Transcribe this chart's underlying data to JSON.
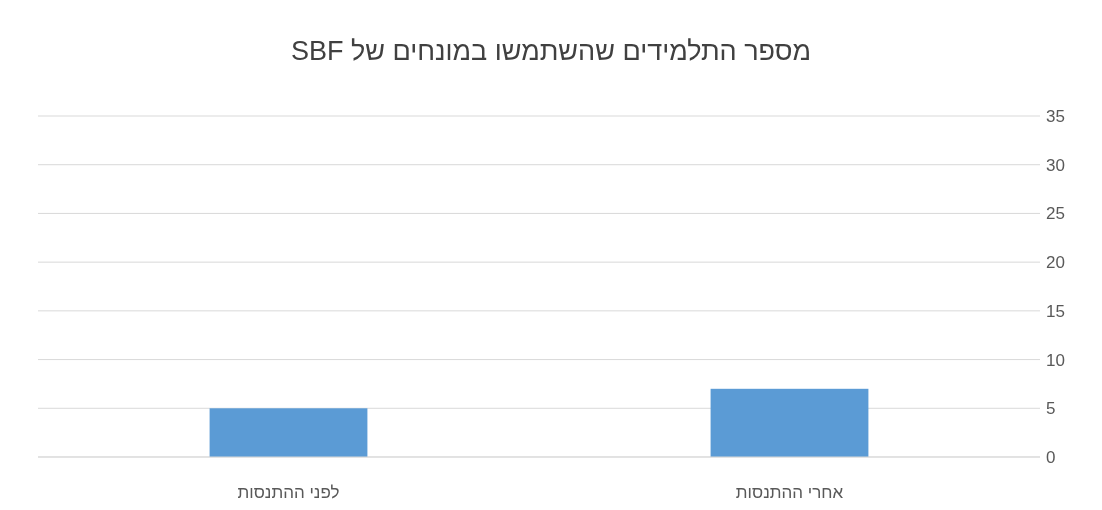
{
  "chart_data": {
    "type": "bar",
    "title": "מספר התלמידים שהשתמשו במונחים של SBF",
    "categories": [
      "לפני ההתנסות",
      "אחרי ההתנסות"
    ],
    "values": [
      5,
      7
    ],
    "color": "#5b9bd5",
    "ylim": [
      0,
      35
    ],
    "yticks": [
      0,
      5,
      10,
      15,
      20,
      25,
      30,
      35
    ],
    "grid": "y"
  }
}
